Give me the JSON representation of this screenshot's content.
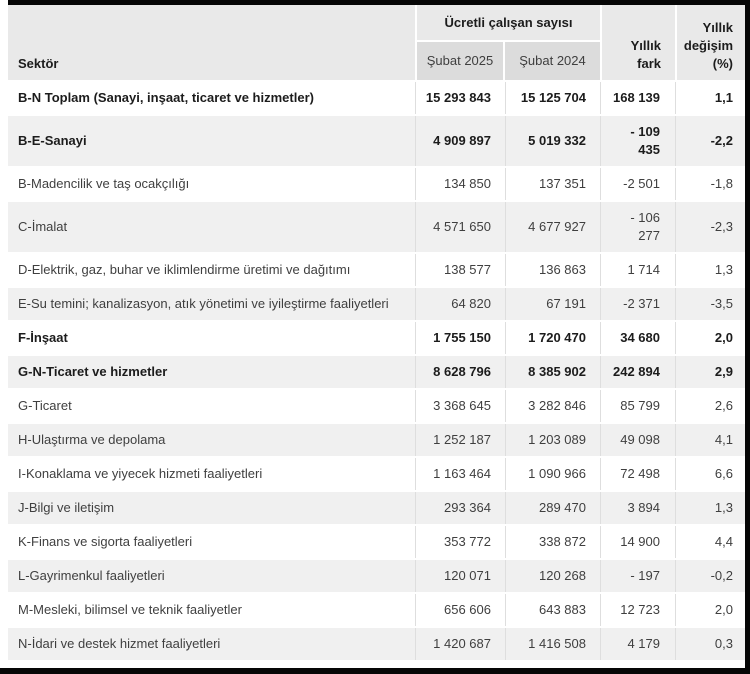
{
  "colors": {
    "header_bg": "#e9e9e9",
    "subheader_bg": "#dcdcdc",
    "row_alt_bg": "#f0f0f0",
    "frame_black": "#060606",
    "text_regular": "#3f3f3f",
    "text_bold": "#1c1c1c"
  },
  "table": {
    "sector_header": "Sektör",
    "group_header": "Ücretli çalışan sayısı",
    "col_2025": "Şubat 2025",
    "col_2024": "Şubat 2024",
    "col_diff": "Yıllık fark",
    "col_change": "Yıllık değişim (%)",
    "rows": [
      {
        "sector": "B-N Toplam (Sanayi, inşaat, ticaret ve hizmetler)",
        "v2025": "15 293 843",
        "v2024": "15 125 704",
        "diff": "168 139",
        "change": "1,1",
        "bold": true
      },
      {
        "sector": "B-E-Sanayi",
        "v2025": "4 909 897",
        "v2024": "5 019 332",
        "diff": "- 109 435",
        "change": "-2,2",
        "bold": true
      },
      {
        "sector": "B-Madencilik ve taş ocakçılığı",
        "v2025": "134 850",
        "v2024": "137 351",
        "diff": "-2 501",
        "change": "-1,8",
        "bold": false
      },
      {
        "sector": "C-İmalat",
        "v2025": "4 571 650",
        "v2024": "4 677 927",
        "diff": "- 106 277",
        "change": "-2,3",
        "bold": false
      },
      {
        "sector": "D-Elektrik, gaz, buhar ve iklimlendirme üretimi ve dağıtımı",
        "v2025": "138 577",
        "v2024": "136 863",
        "diff": "1 714",
        "change": "1,3",
        "bold": false
      },
      {
        "sector": "E-Su temini; kanalizasyon, atık yönetimi ve iyileştirme faaliyetleri",
        "v2025": "64 820",
        "v2024": "67 191",
        "diff": "-2 371",
        "change": "-3,5",
        "bold": false
      },
      {
        "sector": "F-İnşaat",
        "v2025": "1 755 150",
        "v2024": "1 720 470",
        "diff": "34 680",
        "change": "2,0",
        "bold": true
      },
      {
        "sector": "G-N-Ticaret ve hizmetler",
        "v2025": "8 628 796",
        "v2024": "8 385 902",
        "diff": "242 894",
        "change": "2,9",
        "bold": true
      },
      {
        "sector": "G-Ticaret",
        "v2025": "3 368 645",
        "v2024": "3 282 846",
        "diff": "85 799",
        "change": "2,6",
        "bold": false
      },
      {
        "sector": "H-Ulaştırma ve depolama",
        "v2025": "1 252 187",
        "v2024": "1 203 089",
        "diff": "49 098",
        "change": "4,1",
        "bold": false
      },
      {
        "sector": "I-Konaklama ve yiyecek hizmeti faaliyetleri",
        "v2025": "1 163 464",
        "v2024": "1 090 966",
        "diff": "72 498",
        "change": "6,6",
        "bold": false
      },
      {
        "sector": "J-Bilgi ve iletişim",
        "v2025": "293 364",
        "v2024": "289 470",
        "diff": "3 894",
        "change": "1,3",
        "bold": false
      },
      {
        "sector": "K-Finans ve sigorta faaliyetleri",
        "v2025": "353 772",
        "v2024": "338 872",
        "diff": "14 900",
        "change": "4,4",
        "bold": false
      },
      {
        "sector": "L-Gayrimenkul faaliyetleri",
        "v2025": "120 071",
        "v2024": "120 268",
        "diff": "- 197",
        "change": "-0,2",
        "bold": false
      },
      {
        "sector": "M-Mesleki, bilimsel ve teknik faaliyetler",
        "v2025": "656 606",
        "v2024": "643 883",
        "diff": "12 723",
        "change": "2,0",
        "bold": false
      },
      {
        "sector": "N-İdari ve destek hizmet faaliyetleri",
        "v2025": "1 420 687",
        "v2024": "1 416 508",
        "diff": "4 179",
        "change": "0,3",
        "bold": false
      }
    ]
  },
  "chart_data": {
    "type": "table",
    "title": "Ücretli çalışan sayısı",
    "columns": [
      "Sektör",
      "Şubat 2025",
      "Şubat 2024",
      "Yıllık fark",
      "Yıllık değişim (%)"
    ],
    "rows": [
      [
        "B-N Toplam (Sanayi, inşaat, ticaret ve hizmetler)",
        15293843,
        15125704,
        168139,
        1.1
      ],
      [
        "B-E-Sanayi",
        4909897,
        5019332,
        -109435,
        -2.2
      ],
      [
        "B-Madencilik ve taş ocakçılığı",
        134850,
        137351,
        -2501,
        -1.8
      ],
      [
        "C-İmalat",
        4571650,
        4677927,
        -106277,
        -2.3
      ],
      [
        "D-Elektrik, gaz, buhar ve iklimlendirme üretimi ve dağıtımı",
        138577,
        136863,
        1714,
        1.3
      ],
      [
        "E-Su temini; kanalizasyon, atık yönetimi ve iyileştirme faaliyetleri",
        64820,
        67191,
        -2371,
        -3.5
      ],
      [
        "F-İnşaat",
        1755150,
        1720470,
        34680,
        2.0
      ],
      [
        "G-N-Ticaret ve hizmetler",
        8628796,
        8385902,
        242894,
        2.9
      ],
      [
        "G-Ticaret",
        3368645,
        3282846,
        85799,
        2.6
      ],
      [
        "H-Ulaştırma ve depolama",
        1252187,
        1203089,
        49098,
        4.1
      ],
      [
        "I-Konaklama ve yiyecek hizmeti faaliyetleri",
        1163464,
        1090966,
        72498,
        6.6
      ],
      [
        "J-Bilgi ve iletişim",
        293364,
        289470,
        3894,
        1.3
      ],
      [
        "K-Finans ve sigorta faaliyetleri",
        353772,
        338872,
        14900,
        4.4
      ],
      [
        "L-Gayrimenkul faaliyetleri",
        120071,
        120268,
        -197,
        -0.2
      ],
      [
        "M-Mesleki, bilimsel ve teknik faaliyetler",
        656606,
        643883,
        12723,
        2.0
      ],
      [
        "N-İdari ve destek hizmet faaliyetleri",
        1420687,
        1416508,
        4179,
        0.3
      ]
    ]
  }
}
